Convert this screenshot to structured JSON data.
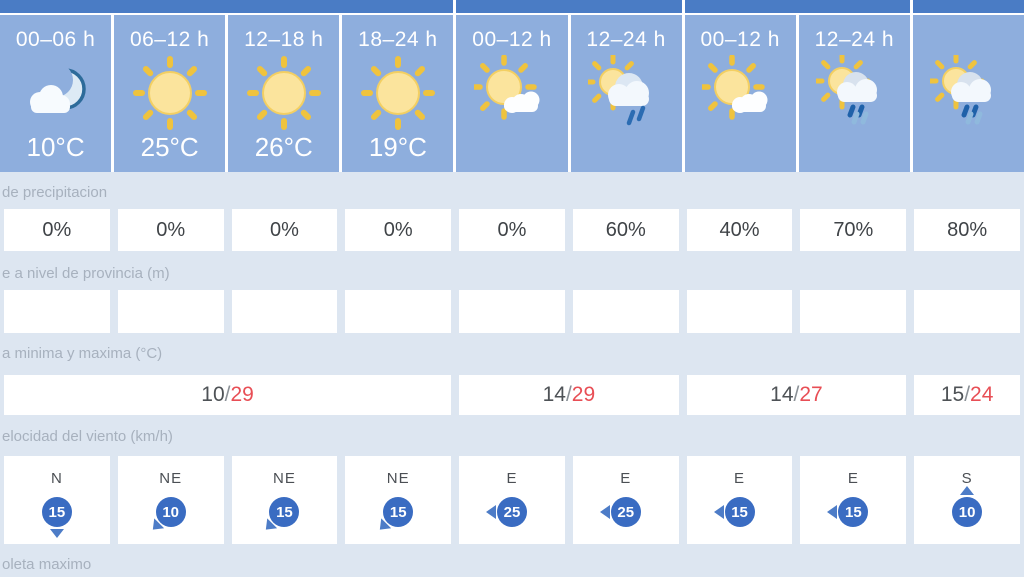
{
  "colors": {
    "topbar": "#4a7cc5",
    "header_bg": "#8eaedd",
    "page_bg": "#dde6f1",
    "cell_bg": "#ffffff",
    "max_temp": "#e84e55",
    "min_temp": "#4e5256",
    "wind_badge": "#3a6cc2",
    "label_text": "#a7b1be",
    "value_text": "#3f4347"
  },
  "header": {
    "groups": [
      {
        "columns": [
          {
            "time": "00–06 h",
            "icon": "cloud-moon",
            "temp": "10°C"
          },
          {
            "time": "06–12 h",
            "icon": "sun",
            "temp": "25°C"
          },
          {
            "time": "12–18 h",
            "icon": "sun",
            "temp": "26°C"
          },
          {
            "time": "18–24 h",
            "icon": "sun",
            "temp": "19°C"
          }
        ]
      },
      {
        "columns": [
          {
            "time": "00–12 h",
            "icon": "sun-cloud",
            "temp": ""
          },
          {
            "time": "12–24 h",
            "icon": "sun-cloud-light-rain",
            "temp": ""
          }
        ]
      },
      {
        "columns": [
          {
            "time": "00–12 h",
            "icon": "sun-cloud",
            "temp": ""
          },
          {
            "time": "12–24 h",
            "icon": "sun-cloud-rain",
            "temp": ""
          }
        ]
      },
      {
        "columns": [
          {
            "time": "",
            "icon": "sun-cloud-rain",
            "temp": ""
          }
        ]
      }
    ]
  },
  "rows": {
    "precipitation": {
      "label": "de precipitacion",
      "values": [
        "0%",
        "0%",
        "0%",
        "0%",
        "0%",
        "60%",
        "40%",
        "70%",
        "80%"
      ]
    },
    "snow_level": {
      "label": "e a nivel de provincia (m)",
      "values": [
        "",
        "",
        "",
        "",
        "",
        "",
        "",
        "",
        ""
      ]
    },
    "min_max": {
      "label": "a minima y maxima (°C)",
      "cells": [
        {
          "min": "10",
          "max": "29",
          "span": 4
        },
        {
          "min": "14",
          "max": "29",
          "span": 2
        },
        {
          "min": "14",
          "max": "27",
          "span": 2
        },
        {
          "min": "15",
          "max": "24",
          "span": 1
        }
      ]
    },
    "wind": {
      "label": "elocidad del viento (km/h)",
      "values": [
        {
          "dir": "N",
          "speed": "15"
        },
        {
          "dir": "NE",
          "speed": "10"
        },
        {
          "dir": "NE",
          "speed": "15"
        },
        {
          "dir": "NE",
          "speed": "15"
        },
        {
          "dir": "E",
          "speed": "25"
        },
        {
          "dir": "E",
          "speed": "25"
        },
        {
          "dir": "E",
          "speed": "15"
        },
        {
          "dir": "E",
          "speed": "15"
        },
        {
          "dir": "S",
          "speed": "10"
        }
      ]
    },
    "uv": {
      "label": "oleta maximo"
    }
  }
}
